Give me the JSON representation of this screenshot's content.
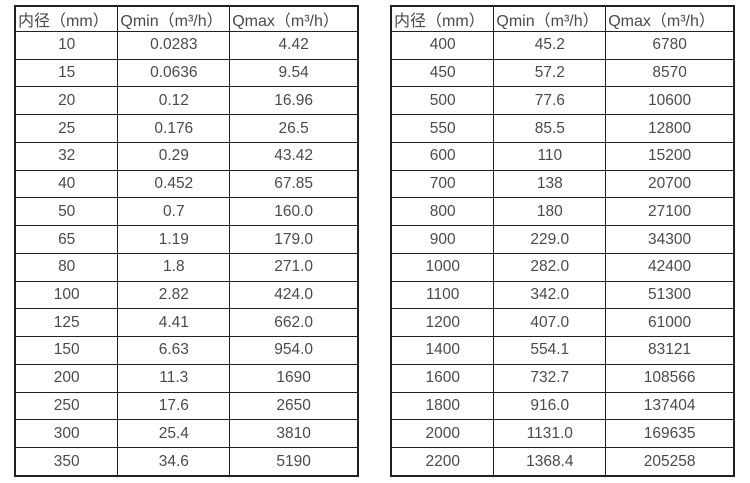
{
  "page": {
    "background_color": "#ffffff",
    "border_color": "#212121",
    "text_color": "#4a4a4a"
  },
  "chart_data": [
    {
      "type": "table",
      "name": "flow-spec-table-small-diameters",
      "columns": [
        "内径（mm）",
        "Qmin（m³/h）",
        "Qmax（m³/h）"
      ],
      "rows": [
        [
          "10",
          "0.0283",
          "4.42"
        ],
        [
          "15",
          "0.0636",
          "9.54"
        ],
        [
          "20",
          "0.12",
          "16.96"
        ],
        [
          "25",
          "0.176",
          "26.5"
        ],
        [
          "32",
          "0.29",
          "43.42"
        ],
        [
          "40",
          "0.452",
          "67.85"
        ],
        [
          "50",
          "0.7",
          "160.0"
        ],
        [
          "65",
          "1.19",
          "179.0"
        ],
        [
          "80",
          "1.8",
          "271.0"
        ],
        [
          "100",
          "2.82",
          "424.0"
        ],
        [
          "125",
          "4.41",
          "662.0"
        ],
        [
          "150",
          "6.63",
          "954.0"
        ],
        [
          "200",
          "11.3",
          "1690"
        ],
        [
          "250",
          "17.6",
          "2650"
        ],
        [
          "300",
          "25.4",
          "3810"
        ],
        [
          "350",
          "34.6",
          "5190"
        ]
      ]
    },
    {
      "type": "table",
      "name": "flow-spec-table-large-diameters",
      "columns": [
        "内径（mm）",
        "Qmin（m³/h）",
        "Qmax（m³/h）"
      ],
      "rows": [
        [
          "400",
          "45.2",
          "6780"
        ],
        [
          "450",
          "57.2",
          "8570"
        ],
        [
          "500",
          "77.6",
          "10600"
        ],
        [
          "550",
          "85.5",
          "12800"
        ],
        [
          "600",
          "110",
          "15200"
        ],
        [
          "700",
          "138",
          "20700"
        ],
        [
          "800",
          "180",
          "27100"
        ],
        [
          "900",
          "229.0",
          "34300"
        ],
        [
          "1000",
          "282.0",
          "42400"
        ],
        [
          "1100",
          "342.0",
          "51300"
        ],
        [
          "1200",
          "407.0",
          "61000"
        ],
        [
          "1400",
          "554.1",
          "83121"
        ],
        [
          "1600",
          "732.7",
          "108566"
        ],
        [
          "1800",
          "916.0",
          "137404"
        ],
        [
          "2000",
          "1131.0",
          "169635"
        ],
        [
          "2200",
          "1368.4",
          "205258"
        ]
      ]
    }
  ]
}
